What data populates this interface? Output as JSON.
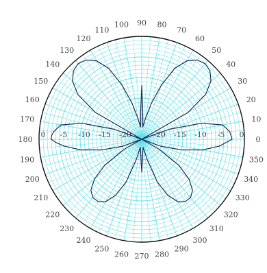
{
  "chart_data": {
    "type": "line",
    "subtype": "polar-radiation-pattern",
    "title": "",
    "xlabel": "",
    "ylabel": "",
    "angle_unit": "deg",
    "angle_ticks": [
      "0",
      "10",
      "20",
      "30",
      "40",
      "50",
      "60",
      "70",
      "80",
      "90",
      "100",
      "110",
      "120",
      "130",
      "140",
      "150",
      "160",
      "170",
      "180",
      "190",
      "200",
      "210",
      "220",
      "230",
      "240",
      "250",
      "260",
      "270",
      "280",
      "290",
      "300",
      "310",
      "320",
      "330",
      "340",
      "350"
    ],
    "radial_ticks_left": [
      "0",
      "-5",
      "-10",
      "-15",
      "-20"
    ],
    "radial_ticks_right": [
      "-20",
      "-15",
      "-10",
      "-5",
      "0"
    ],
    "radial_range_db": [
      -25,
      0
    ],
    "grid": true,
    "legend": "none",
    "colors": {
      "grid": "#5fe0e8",
      "trace": "#1e2a55",
      "ring": "#111111"
    },
    "series": [
      {
        "angles": [
          0,
          5,
          10,
          15,
          20,
          25,
          30,
          35,
          40,
          45,
          50,
          55,
          60,
          65,
          70,
          75,
          80,
          85,
          88,
          90,
          92,
          95,
          100,
          105,
          110,
          115,
          120,
          125,
          130,
          135,
          140,
          145,
          150,
          155,
          160,
          165,
          170,
          175,
          178,
          180,
          182,
          185,
          190,
          195,
          200,
          205,
          210,
          215,
          220,
          225,
          230,
          235,
          240,
          245,
          250,
          255,
          260,
          265,
          268,
          270,
          272,
          275,
          280,
          285,
          290,
          295,
          300,
          305,
          310,
          315,
          320,
          325,
          330,
          335,
          340,
          345,
          350,
          355
        ],
        "values_db": [
          -3,
          -3.5,
          -5,
          -10,
          -18,
          -25,
          -12,
          -6,
          -3,
          -1.5,
          -1,
          -1.5,
          -3,
          -6,
          -11,
          -16,
          -20,
          -22,
          -18,
          -12,
          -18,
          -22,
          -20,
          -16,
          -11,
          -6,
          -3,
          -1.5,
          -1,
          -1.5,
          -3,
          -6,
          -12,
          -25,
          -18,
          -10,
          -5,
          -3.5,
          -3,
          -3,
          -4,
          -6,
          -10,
          -15,
          -20,
          -25,
          -20,
          -14,
          -10,
          -7.5,
          -6.5,
          -6.5,
          -7.5,
          -10,
          -14,
          -20,
          -23,
          -22,
          -20,
          -17,
          -20,
          -22,
          -23,
          -20,
          -14,
          -10,
          -7.5,
          -6.5,
          -6.5,
          -7.5,
          -10,
          -14,
          -20,
          -25,
          -20,
          -15,
          -10,
          -6
        ]
      }
    ]
  }
}
